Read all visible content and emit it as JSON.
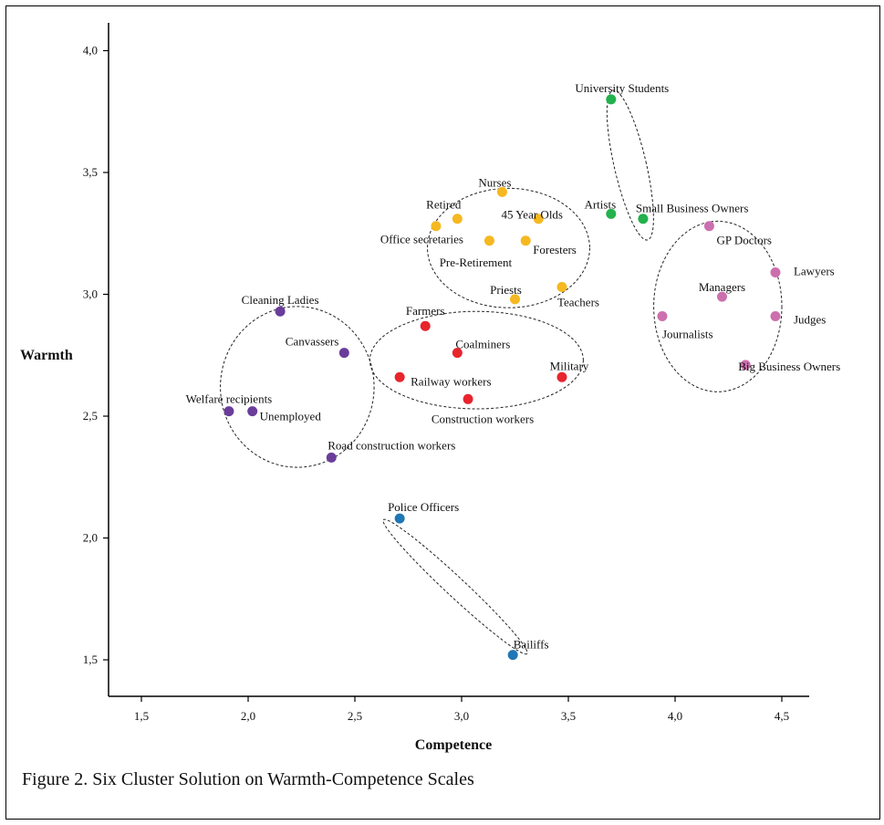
{
  "caption": "Figure 2. Six Cluster Solution on Warmth-Competence Scales",
  "colors": {
    "purple": "#6a3d9a",
    "red": "#e8242c",
    "orange": "#f5b820",
    "green": "#22b14c",
    "pink": "#cc6fae",
    "blue": "#1f77b4",
    "axis": "#000000"
  },
  "chart_data": {
    "type": "scatter",
    "xlabel": "Competence",
    "ylabel": "Warmth",
    "xlim": [
      1.35,
      4.7
    ],
    "ylim": [
      1.35,
      4.1
    ],
    "xticks": [
      {
        "value": 1.5,
        "label": "1,5"
      },
      {
        "value": 2.0,
        "label": "2,0"
      },
      {
        "value": 2.5,
        "label": "2,5"
      },
      {
        "value": 3.0,
        "label": "3,0"
      },
      {
        "value": 3.5,
        "label": "3,5"
      },
      {
        "value": 4.0,
        "label": "4,0"
      },
      {
        "value": 4.5,
        "label": "4,5"
      }
    ],
    "yticks": [
      {
        "value": 1.5,
        "label": "1,5"
      },
      {
        "value": 2.0,
        "label": "2,0"
      },
      {
        "value": 2.5,
        "label": "2,5"
      },
      {
        "value": 3.0,
        "label": "3,0"
      },
      {
        "value": 3.5,
        "label": "3,5"
      },
      {
        "value": 4.0,
        "label": "4,0"
      }
    ],
    "grid": false,
    "legend": "none",
    "points": [
      {
        "label": "Cleaning Ladies",
        "x": 2.15,
        "y": 2.93,
        "color": "purple",
        "anchor": "middle",
        "dx": 0,
        "dy": -12
      },
      {
        "label": "Canvassers",
        "x": 2.45,
        "y": 2.76,
        "color": "purple",
        "anchor": "end",
        "dx": -6,
        "dy": -12
      },
      {
        "label": "Welfare recipients",
        "x": 1.91,
        "y": 2.52,
        "color": "purple",
        "anchor": "middle",
        "dx": 0,
        "dy": -13
      },
      {
        "label": "Unemployed",
        "x": 2.02,
        "y": 2.52,
        "color": "purple",
        "anchor": "start",
        "dx": 8,
        "dy": 6
      },
      {
        "label": "Road construction workers",
        "x": 2.39,
        "y": 2.33,
        "color": "purple",
        "anchor": "start",
        "dx": -4,
        "dy": -13
      },
      {
        "label": "Farmers",
        "x": 2.83,
        "y": 2.87,
        "color": "red",
        "anchor": "middle",
        "dx": 0,
        "dy": -16
      },
      {
        "label": "Coalminers",
        "x": 2.98,
        "y": 2.76,
        "color": "red",
        "anchor": "start",
        "dx": -2,
        "dy": -9
      },
      {
        "label": "Railway workers",
        "x": 2.71,
        "y": 2.66,
        "color": "red",
        "anchor": "start",
        "dx": 12,
        "dy": 5
      },
      {
        "label": "Military",
        "x": 3.47,
        "y": 2.66,
        "color": "red",
        "anchor": "middle",
        "dx": 8,
        "dy": -12
      },
      {
        "label": "Construction workers",
        "x": 3.03,
        "y": 2.57,
        "color": "red",
        "anchor": "middle",
        "dx": 16,
        "dy": 22
      },
      {
        "label": "Nurses",
        "x": 3.19,
        "y": 3.42,
        "color": "orange",
        "anchor": "middle",
        "dx": -8,
        "dy": -10
      },
      {
        "label": "Retired",
        "x": 2.98,
        "y": 3.31,
        "color": "orange",
        "anchor": "middle",
        "dx": -15,
        "dy": -15
      },
      {
        "label": "45 Year Olds",
        "x": 3.36,
        "y": 3.31,
        "color": "orange",
        "anchor": "middle",
        "dx": -7,
        "dy": -4
      },
      {
        "label": "Office secretaries",
        "x": 2.88,
        "y": 3.28,
        "color": "orange",
        "anchor": "end",
        "dx": 30,
        "dy": 15
      },
      {
        "label": "Pre-Retirement",
        "x": 3.13,
        "y": 3.22,
        "color": "orange",
        "anchor": "middle",
        "dx": -15,
        "dy": 24
      },
      {
        "label": "Foresters",
        "x": 3.3,
        "y": 3.22,
        "color": "orange",
        "anchor": "start",
        "dx": 8,
        "dy": 10
      },
      {
        "label": "Priests",
        "x": 3.25,
        "y": 2.98,
        "color": "orange",
        "anchor": "middle",
        "dx": -10,
        "dy": -10
      },
      {
        "label": "Teachers",
        "x": 3.47,
        "y": 3.03,
        "color": "orange",
        "anchor": "start",
        "dx": -5,
        "dy": 17
      },
      {
        "label": "University Students",
        "x": 3.7,
        "y": 3.8,
        "color": "green",
        "anchor": "middle",
        "dx": 12,
        "dy": -12
      },
      {
        "label": "Artists",
        "x": 3.7,
        "y": 3.33,
        "color": "green",
        "anchor": "middle",
        "dx": -12,
        "dy": -10
      },
      {
        "label": "Small Business Owners",
        "x": 3.85,
        "y": 3.31,
        "color": "green",
        "anchor": "start",
        "dx": -8,
        "dy": -11
      },
      {
        "label": "GP Doctors",
        "x": 4.16,
        "y": 3.28,
        "color": "pink",
        "anchor": "start",
        "dx": 8,
        "dy": 16
      },
      {
        "label": "Lawyers",
        "x": 4.47,
        "y": 3.09,
        "color": "pink",
        "anchor": "start",
        "dx": 20,
        "dy": -1
      },
      {
        "label": "Managers",
        "x": 4.22,
        "y": 2.99,
        "color": "pink",
        "anchor": "middle",
        "dx": 0,
        "dy": -10
      },
      {
        "label": "Journalists",
        "x": 3.94,
        "y": 2.91,
        "color": "pink",
        "anchor": "start",
        "dx": 0,
        "dy": 20
      },
      {
        "label": "Judges",
        "x": 4.47,
        "y": 2.91,
        "color": "pink",
        "anchor": "start",
        "dx": 20,
        "dy": 4
      },
      {
        "label": "Big Business Owners",
        "x": 4.33,
        "y": 2.71,
        "color": "pink",
        "anchor": "start",
        "dx": -8,
        "dy": 2
      },
      {
        "label": "Police Officers",
        "x": 2.71,
        "y": 2.08,
        "color": "blue",
        "anchor": "middle",
        "dx": 26,
        "dy": -12
      },
      {
        "label": "Bailiffs",
        "x": 3.24,
        "y": 1.52,
        "color": "blue",
        "anchor": "middle",
        "dx": 20,
        "dy": -11
      }
    ],
    "clusters": [
      {
        "cx": 2.23,
        "cy": 2.62,
        "rx": 0.36,
        "ry": 0.33,
        "rotate": 0
      },
      {
        "cx": 3.07,
        "cy": 2.73,
        "rx": 0.5,
        "ry": 0.2,
        "rotate": 0
      },
      {
        "cx": 3.22,
        "cy": 3.19,
        "rx": 0.38,
        "ry": 0.245,
        "rotate": 0
      },
      {
        "cx": 3.79,
        "cy": 3.53,
        "rx": 0.075,
        "ry": 0.315,
        "rotate": -13
      },
      {
        "cx": 4.2,
        "cy": 2.95,
        "rx": 0.3,
        "ry": 0.35,
        "rotate": 0
      },
      {
        "cx": 2.97,
        "cy": 1.8,
        "rx": 0.46,
        "ry": 0.04,
        "rotate": 43
      }
    ]
  }
}
